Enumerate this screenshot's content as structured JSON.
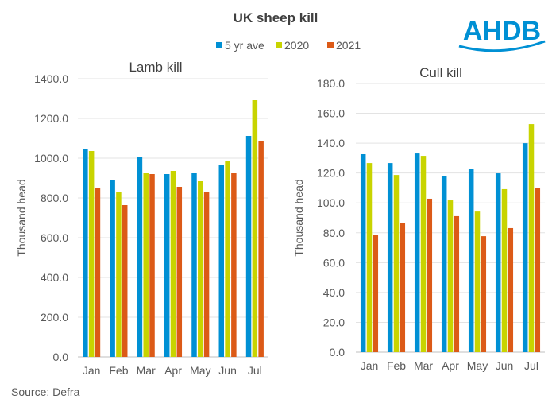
{
  "title": "UK sheep kill",
  "logo_text": "AHDB",
  "source": "Source: Defra",
  "colors": {
    "5 yr ave": "#0090d4",
    "2020": "#c8d400",
    "2021": "#dc5a17",
    "logo": "#0090d4"
  },
  "legend": [
    "5 yr ave",
    "2020",
    "2021"
  ],
  "chart_data": [
    {
      "type": "bar",
      "title": "Lamb kill",
      "ylabel": "Thousand head",
      "categories": [
        "Jan",
        "Feb",
        "Mar",
        "Apr",
        "May",
        "Jun",
        "Jul"
      ],
      "ylim": [
        0,
        1400
      ],
      "yticks": [
        "0.0",
        "200.0",
        "400.0",
        "600.0",
        "800.0",
        "1000.0",
        "1200.0",
        "1400.0"
      ],
      "grid": true,
      "legend_position": "top",
      "series": [
        {
          "name": "5 yr ave",
          "values": [
            1044,
            892,
            1008,
            920,
            924,
            964,
            1112
          ]
        },
        {
          "name": "2020",
          "values": [
            1036,
            832,
            924,
            936,
            884,
            988,
            1292
          ]
        },
        {
          "name": "2021",
          "values": [
            852,
            764,
            920,
            856,
            832,
            924,
            1084
          ]
        }
      ]
    },
    {
      "type": "bar",
      "title": "Cull kill",
      "ylabel": "Thousand head",
      "categories": [
        "Jan",
        "Feb",
        "Mar",
        "Apr",
        "May",
        "Jun",
        "Jul"
      ],
      "ylim": [
        0,
        180
      ],
      "yticks": [
        "0.0",
        "20.0",
        "40.0",
        "60.0",
        "80.0",
        "100.0",
        "120.0",
        "140.0",
        "160.0",
        "180.0"
      ],
      "grid": true,
      "legend_position": "top",
      "series": [
        {
          "name": "5 yr ave",
          "values": [
            132.6,
            126.7,
            133.1,
            118.2,
            123.0,
            119.8,
            140.0
          ]
        },
        {
          "name": "2020",
          "values": [
            126.7,
            118.7,
            131.5,
            101.7,
            94.2,
            109.2,
            152.8
          ]
        },
        {
          "name": "2021",
          "values": [
            78.3,
            86.8,
            102.8,
            91.1,
            77.7,
            83.1,
            110.2
          ]
        }
      ]
    }
  ]
}
